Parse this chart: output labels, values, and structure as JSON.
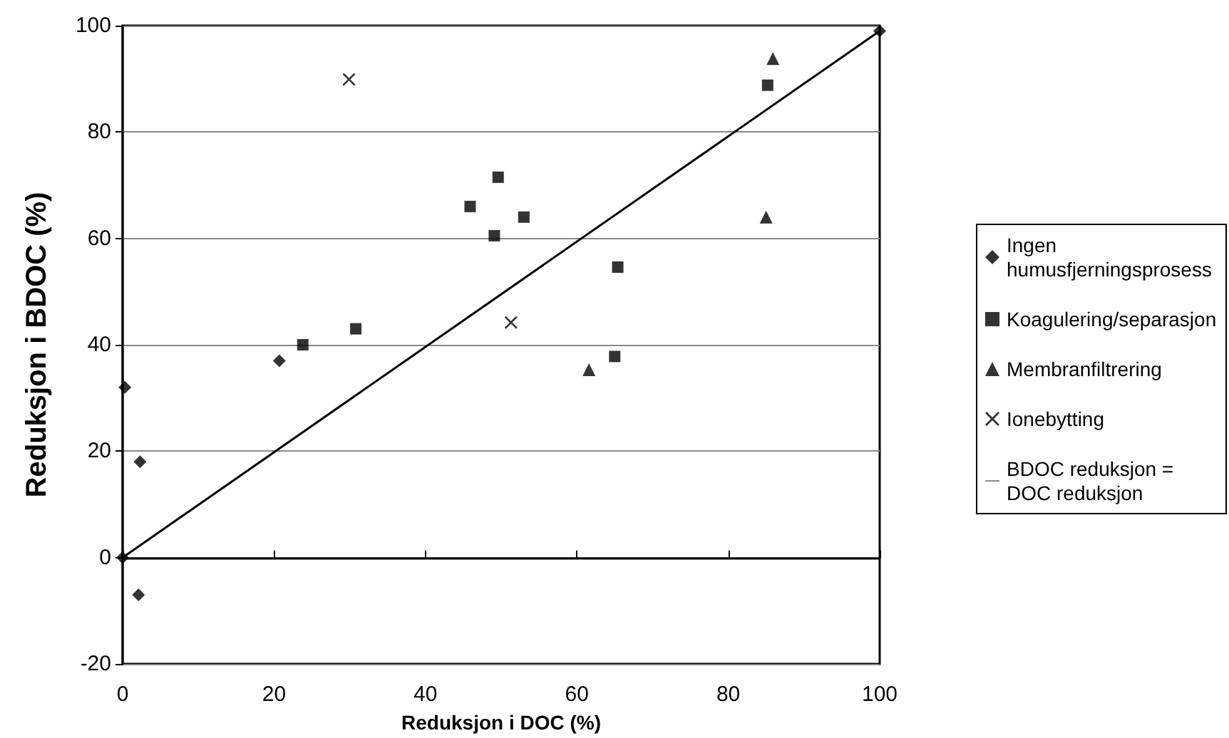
{
  "chart_data": {
    "type": "scatter",
    "xlabel": "Reduksjon i DOC (%)",
    "ylabel": "Reduksjon i BDOC (%)",
    "xlim": [
      0,
      100
    ],
    "xticks": [
      0,
      20,
      40,
      60,
      80,
      100
    ],
    "ylim": [
      -20,
      100
    ],
    "yticks": [
      -20,
      0,
      20,
      40,
      60,
      80,
      100
    ],
    "grid": "y",
    "legend": "right",
    "series": [
      {
        "name": "Ingen humusfjerningsprosess",
        "color": "#000000",
        "marker": "diamond",
        "x": [
          0.3,
          2.3,
          20.7,
          0,
          2.1,
          100
        ],
        "values": [
          32,
          18,
          37,
          0,
          -7,
          99
        ]
      },
      {
        "name": "Koagulering/separasjon",
        "color": "#000000",
        "marker": "square",
        "x": [
          23.8,
          30.8,
          45.9,
          49.6,
          53,
          49.1,
          65.4,
          65,
          85.2
        ],
        "values": [
          40,
          43,
          66,
          71.5,
          64,
          60.5,
          54.6,
          37.8,
          88.8
        ]
      },
      {
        "name": "Membranfiltrering",
        "color": "#000000",
        "marker": "triangle",
        "x": [
          61.6,
          85.9,
          85
        ],
        "values": [
          35.3,
          93.8,
          64
        ]
      },
      {
        "name": "Ionebytting",
        "color": "#000000",
        "marker": "cross",
        "x": [
          29.9,
          51.3
        ],
        "values": [
          89.9,
          44.2
        ]
      },
      {
        "name": "BDOC reduksjon = DOC reduksjon",
        "type": "line",
        "color": "#000000",
        "marker": "none",
        "line_style": "solid",
        "x": [
          0,
          100
        ],
        "values": [
          0,
          99
        ]
      }
    ]
  }
}
